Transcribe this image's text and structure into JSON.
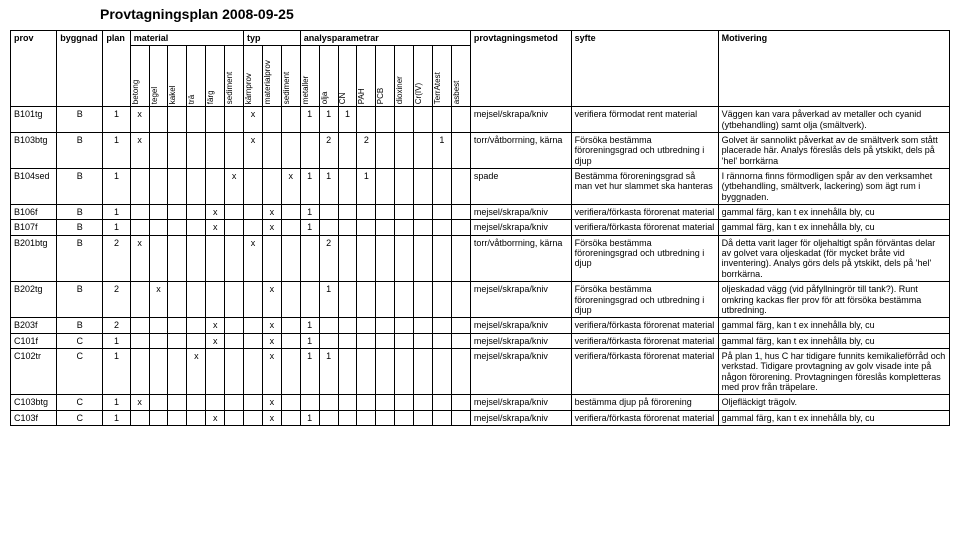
{
  "title": "Provtagningsplan 2008-09-25",
  "headers": {
    "prov": "prov",
    "byggnad": "byggnad",
    "plan": "plan",
    "material": "material",
    "typ": "typ",
    "analys": "analysparametrar",
    "metod": "provtagningsmetod",
    "syfte": "syfte",
    "motiv": "Motivering"
  },
  "matcols": [
    "betong",
    "tegel",
    "kakel",
    "trä",
    "färg",
    "sediment"
  ],
  "typcols": [
    "kärnprov",
    "materialprov",
    "sediment"
  ],
  "anacols": [
    "metaller",
    "olja",
    "CN",
    "PAH",
    "PCB",
    "dioxiner",
    "Cr(IV)",
    "TerrAtest",
    "asbest"
  ],
  "rows": [
    {
      "prov": "B101tg",
      "byggnad": "B",
      "plan": "1",
      "mat": [
        "x",
        "",
        "",
        "",
        "",
        ""
      ],
      "typ": [
        "x",
        "",
        ""
      ],
      "ana": [
        "1",
        "1",
        "1",
        "",
        "",
        "",
        "",
        "",
        ""
      ],
      "metod": "mejsel/skrapa/kniv",
      "syfte": "verifiera förmodat rent material",
      "motiv": "Väggen kan vara påverkad av metaller och cyanid (ytbehandling) samt olja (smältverk)."
    },
    {
      "prov": "B103btg",
      "byggnad": "B",
      "plan": "1",
      "mat": [
        "x",
        "",
        "",
        "",
        "",
        ""
      ],
      "typ": [
        "x",
        "",
        ""
      ],
      "ana": [
        "",
        "2",
        "",
        "2",
        "",
        "",
        "",
        "1",
        ""
      ],
      "metod": "torr/våtborrning, kärna",
      "syfte": "Försöka bestämma föroreningsgrad och utbredning i djup",
      "motiv": "Golvet är sannolikt påverkat av de smältverk som stått placerade här. Analys föreslås dels på ytskikt, dels på 'hel' borrkärna"
    },
    {
      "prov": "B104sed",
      "byggnad": "B",
      "plan": "1",
      "mat": [
        "",
        "",
        "",
        "",
        "",
        "x"
      ],
      "typ": [
        "",
        "",
        "x"
      ],
      "ana": [
        "1",
        "1",
        "",
        "1",
        "",
        "",
        "",
        "",
        ""
      ],
      "metod": "spade",
      "syfte": "Bestämma föroreningsgrad så man vet hur slammet ska hanteras",
      "motiv": "I rännorna finns förmodligen spår av den verksamhet (ytbehandling, smältverk, lackering) som ägt rum i byggnaden."
    },
    {
      "prov": "B106f",
      "byggnad": "B",
      "plan": "1",
      "mat": [
        "",
        "",
        "",
        "",
        "x",
        ""
      ],
      "typ": [
        "",
        "x",
        ""
      ],
      "ana": [
        "1",
        "",
        "",
        "",
        "",
        "",
        "",
        "",
        ""
      ],
      "metod": "mejsel/skrapa/kniv",
      "syfte": "verifiera/förkasta förorenat material",
      "motiv": "gammal färg, kan t ex innehålla bly, cu"
    },
    {
      "prov": "B107f",
      "byggnad": "B",
      "plan": "1",
      "mat": [
        "",
        "",
        "",
        "",
        "x",
        ""
      ],
      "typ": [
        "",
        "x",
        ""
      ],
      "ana": [
        "1",
        "",
        "",
        "",
        "",
        "",
        "",
        "",
        ""
      ],
      "metod": "mejsel/skrapa/kniv",
      "syfte": "verifiera/förkasta förorenat material",
      "motiv": "gammal färg, kan t ex innehålla bly, cu"
    },
    {
      "prov": "B201btg",
      "byggnad": "B",
      "plan": "2",
      "mat": [
        "x",
        "",
        "",
        "",
        "",
        ""
      ],
      "typ": [
        "x",
        "",
        ""
      ],
      "ana": [
        "",
        "2",
        "",
        "",
        "",
        "",
        "",
        "",
        ""
      ],
      "metod": "torr/våtborrning, kärna",
      "syfte": "Försöka bestämma föroreningsgrad och utbredning i djup",
      "motiv": "Då detta varit lager för oljehaltigt spån förväntas delar av golvet vara oljeskadat (för mycket bråte vid inventering). Analys görs dels på ytskikt, dels på 'hel' borrkärna."
    },
    {
      "prov": "B202tg",
      "byggnad": "B",
      "plan": "2",
      "mat": [
        "",
        "x",
        "",
        "",
        "",
        ""
      ],
      "typ": [
        "",
        "x",
        ""
      ],
      "ana": [
        "",
        "1",
        "",
        "",
        "",
        "",
        "",
        "",
        ""
      ],
      "metod": "mejsel/skrapa/kniv",
      "syfte": "Försöka bestämma föroreningsgrad och utbredning i djup",
      "motiv": "oljeskadad vägg (vid påfyllningrör till tank?). Runt omkring kackas fler prov för att försöka bestämma utbredning."
    },
    {
      "prov": "B203f",
      "byggnad": "B",
      "plan": "2",
      "mat": [
        "",
        "",
        "",
        "",
        "x",
        ""
      ],
      "typ": [
        "",
        "x",
        ""
      ],
      "ana": [
        "1",
        "",
        "",
        "",
        "",
        "",
        "",
        "",
        ""
      ],
      "metod": "mejsel/skrapa/kniv",
      "syfte": "verifiera/förkasta förorenat material",
      "motiv": "gammal färg, kan t ex innehålla bly, cu"
    },
    {
      "prov": "C101f",
      "byggnad": "C",
      "plan": "1",
      "mat": [
        "",
        "",
        "",
        "",
        "x",
        ""
      ],
      "typ": [
        "",
        "x",
        ""
      ],
      "ana": [
        "1",
        "",
        "",
        "",
        "",
        "",
        "",
        "",
        ""
      ],
      "metod": "mejsel/skrapa/kniv",
      "syfte": "verifiera/förkasta förorenat material",
      "motiv": "gammal färg, kan t ex innehålla bly, cu"
    },
    {
      "prov": "C102tr",
      "byggnad": "C",
      "plan": "1",
      "mat": [
        "",
        "",
        "",
        "x",
        "",
        ""
      ],
      "typ": [
        "",
        "x",
        ""
      ],
      "ana": [
        "1",
        "1",
        "",
        "",
        "",
        "",
        "",
        "",
        ""
      ],
      "metod": "mejsel/skrapa/kniv",
      "syfte": "verifiera/förkasta förorenat material",
      "motiv": "På plan 1, hus C har tidigare funnits kemikalieförråd och verkstad. Tidigare provtagning av golv visade inte på någon förorening. Provtagningen föreslås kompletteras med prov från träpelare."
    },
    {
      "prov": "C103btg",
      "byggnad": "C",
      "plan": "1",
      "mat": [
        "x",
        "",
        "",
        "",
        "",
        ""
      ],
      "typ": [
        "",
        "x",
        ""
      ],
      "ana": [
        "",
        "",
        "",
        "",
        "",
        "",
        "",
        "",
        ""
      ],
      "metod": "mejsel/skrapa/kniv",
      "syfte": "bestämma djup på förorening",
      "motiv": "Oljefläckigt trägolv."
    },
    {
      "prov": "C103f",
      "byggnad": "C",
      "plan": "1",
      "mat": [
        "",
        "",
        "",
        "",
        "x",
        ""
      ],
      "typ": [
        "",
        "x",
        ""
      ],
      "ana": [
        "1",
        "",
        "",
        "",
        "",
        "",
        "",
        "",
        ""
      ],
      "metod": "mejsel/skrapa/kniv",
      "syfte": "verifiera/förkasta förorenat material",
      "motiv": "gammal färg, kan t ex innehålla bly, cu"
    }
  ]
}
